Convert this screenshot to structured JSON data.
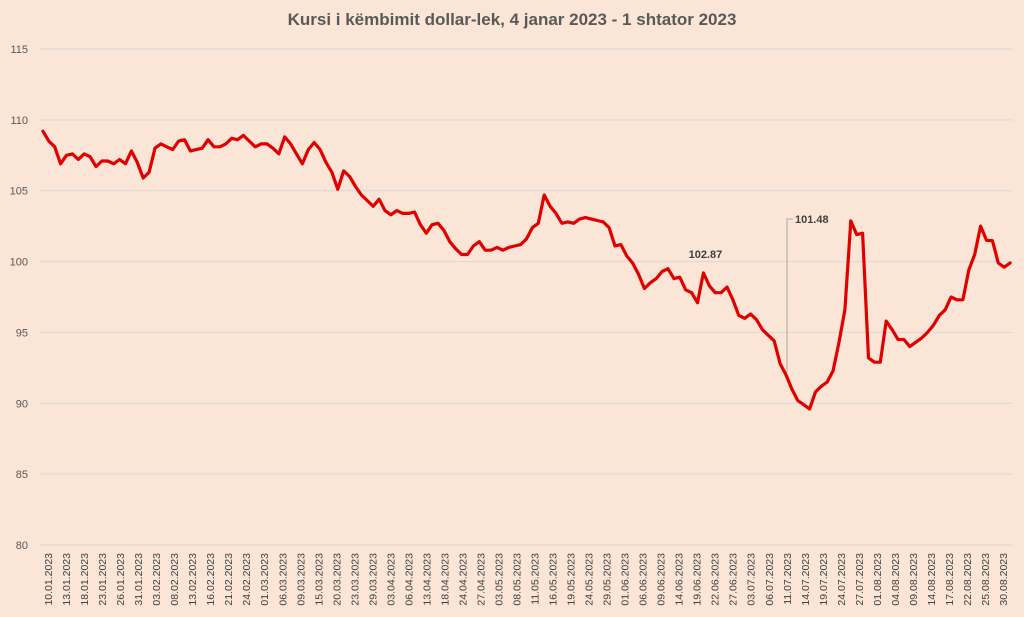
{
  "colors": {
    "background": "#fbe5d6",
    "line": "#e00000",
    "grid": "#d9d9d9",
    "text": "#595959"
  },
  "chart_data": {
    "type": "line",
    "title": "Kursi i këmbimit dollar-lek, 4 janar 2023 - 1 shtator 2023",
    "xlabel": "",
    "ylabel": "",
    "ylim": [
      80,
      115
    ],
    "yticks": [
      80,
      85,
      90,
      95,
      100,
      105,
      110,
      115
    ],
    "grid": true,
    "xtick_labels": [
      "10.01.2023",
      "13.01.2023",
      "18.01.2023",
      "23.01.2023",
      "26.01.2023",
      "31.01.2023",
      "03.02.2023",
      "08.02.2023",
      "13.02.2023",
      "16.02.2023",
      "21.02.2023",
      "24.02.2023",
      "01.03.2023",
      "06.03.2023",
      "09.03.2023",
      "15.03.2023",
      "20.03.2023",
      "23.03.2023",
      "29.03.2023",
      "03.04.2023",
      "06.04.2023",
      "13.04.2023",
      "18.04.2023",
      "24.04.2023",
      "27.04.2023",
      "03.05.2023",
      "08.05.2023",
      "11.05.2023",
      "16.05.2023",
      "19.05.2023",
      "24.05.2023",
      "29.05.2023",
      "01.06.2023",
      "06.06.2023",
      "09.06.2023",
      "14.06.2023",
      "19.06.2023",
      "22.06.2023",
      "27.06.2023",
      "03.07.2023",
      "06.07.2023",
      "11.07.2023",
      "14.07.2023",
      "19.07.2023",
      "24.07.2023",
      "27.07.2023",
      "01.08.2023",
      "04.08.2023",
      "09.08.2023",
      "14.08.2023",
      "17.08.2023",
      "22.08.2023",
      "25.08.2023",
      "30.08.2023"
    ],
    "annotations": [
      {
        "text": "102.87",
        "index": 112
      },
      {
        "text": "101.48",
        "index": 128
      }
    ],
    "series": [
      {
        "values": [
          109.2,
          108.5,
          108.1,
          106.9,
          107.5,
          107.6,
          107.2,
          107.6,
          107.4,
          106.7,
          107.1,
          107.1,
          106.9,
          107.2,
          106.9,
          107.8,
          107.0,
          105.9,
          106.3,
          108.0,
          108.3,
          108.1,
          107.9,
          108.5,
          108.6,
          107.8,
          107.9,
          108.0,
          108.6,
          108.1,
          108.1,
          108.3,
          108.7,
          108.6,
          108.9,
          108.5,
          108.1,
          108.3,
          108.3,
          108.0,
          107.6,
          108.8,
          108.3,
          107.6,
          106.9,
          107.9,
          108.4,
          107.9,
          107.0,
          106.3,
          105.1,
          106.4,
          106.0,
          105.3,
          104.7,
          104.3,
          103.9,
          104.4,
          103.6,
          103.3,
          103.6,
          103.4,
          103.4,
          103.5,
          102.6,
          102.0,
          102.6,
          102.7,
          102.2,
          101.4,
          100.9,
          100.5,
          100.5,
          101.1,
          101.4,
          100.8,
          100.8,
          101.0,
          100.8,
          101.0,
          101.1,
          101.2,
          101.6,
          102.4,
          102.7,
          104.7,
          103.9,
          103.4,
          102.7,
          102.8,
          102.7,
          103.0,
          103.1,
          103.0,
          102.9,
          102.8,
          102.4,
          101.1,
          101.2,
          100.4,
          99.9,
          99.1,
          98.1,
          98.5,
          98.8,
          99.3,
          99.5,
          98.8,
          98.9,
          98.0,
          97.8,
          97.1,
          99.2,
          98.3,
          97.8,
          97.8,
          98.2,
          97.3,
          96.2,
          96.0,
          96.3,
          95.9,
          95.2,
          94.8,
          94.4,
          92.8,
          92.0,
          91.0,
          90.2,
          89.9,
          89.6,
          90.8,
          91.2,
          91.5,
          92.3,
          94.3,
          96.6,
          102.87,
          101.9,
          102.0,
          93.2,
          92.9,
          92.9,
          95.8,
          95.2,
          94.5,
          94.5,
          94.0,
          94.3,
          94.6,
          95.0,
          95.5,
          96.2,
          96.6,
          97.5,
          97.3,
          97.3,
          99.4,
          100.5,
          102.5,
          101.5,
          101.48,
          99.9,
          99.6,
          99.9
        ]
      }
    ]
  }
}
